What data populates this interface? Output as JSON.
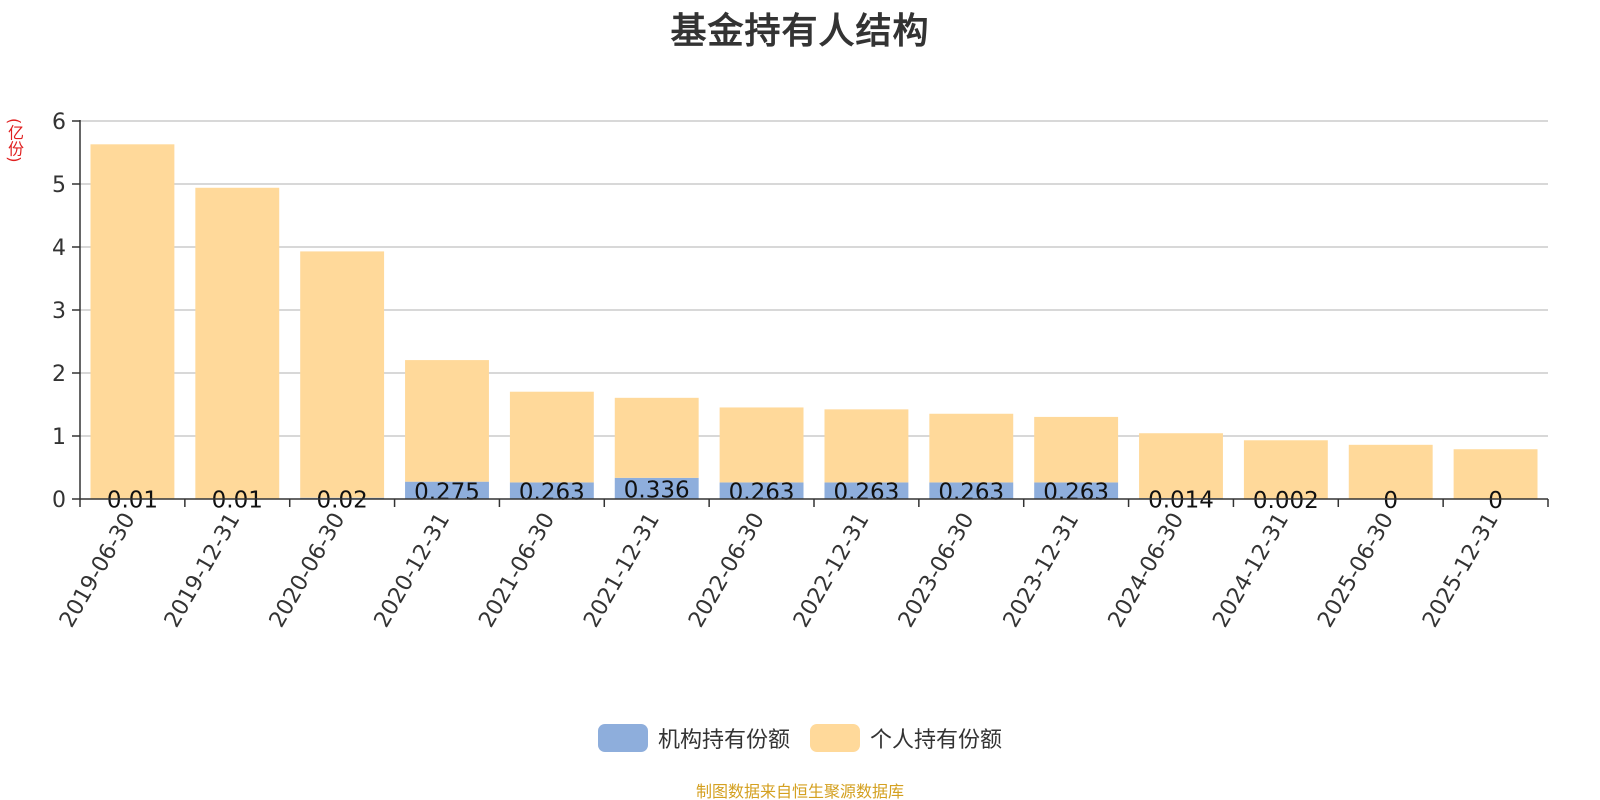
{
  "chart_data": {
    "type": "bar",
    "stacked": true,
    "title": "基金持有人结构",
    "unit_label": "(亿份)",
    "categories": [
      "2019-06-30",
      "2019-12-31",
      "2020-06-30",
      "2020-12-31",
      "2021-06-30",
      "2021-12-31",
      "2022-06-30",
      "2022-12-31",
      "2023-06-30",
      "2023-12-31",
      "2024-06-30",
      "2024-12-31",
      "2025-06-30",
      "2025-12-31"
    ],
    "series": [
      {
        "name": "机构持有份额",
        "color": "#8eaedc",
        "values": [
          0.01,
          0.01,
          0.02,
          0.275,
          0.263,
          0.336,
          0.263,
          0.263,
          0.263,
          0.263,
          0.014,
          0.002,
          0,
          0
        ],
        "labels": [
          "0.01",
          "0.01",
          "0.02",
          "0.275",
          "0.263",
          "0.336",
          "0.263",
          "0.263",
          "0.263",
          "0.263",
          "0.014",
          "0.002",
          "0",
          "0"
        ]
      },
      {
        "name": "个人持有份额",
        "color": "#ffd99a",
        "values": [
          5.62,
          4.93,
          3.91,
          1.93,
          1.44,
          1.27,
          1.19,
          1.16,
          1.09,
          1.04,
          1.03,
          0.93,
          0.86,
          0.79
        ]
      }
    ],
    "ylim": [
      0,
      6
    ],
    "yticks": [
      "0",
      "1",
      "2",
      "3",
      "4",
      "5",
      "6"
    ],
    "grid": true,
    "legend_position": "bottom-center",
    "source_note": "制图数据来自恒生聚源数据库"
  }
}
